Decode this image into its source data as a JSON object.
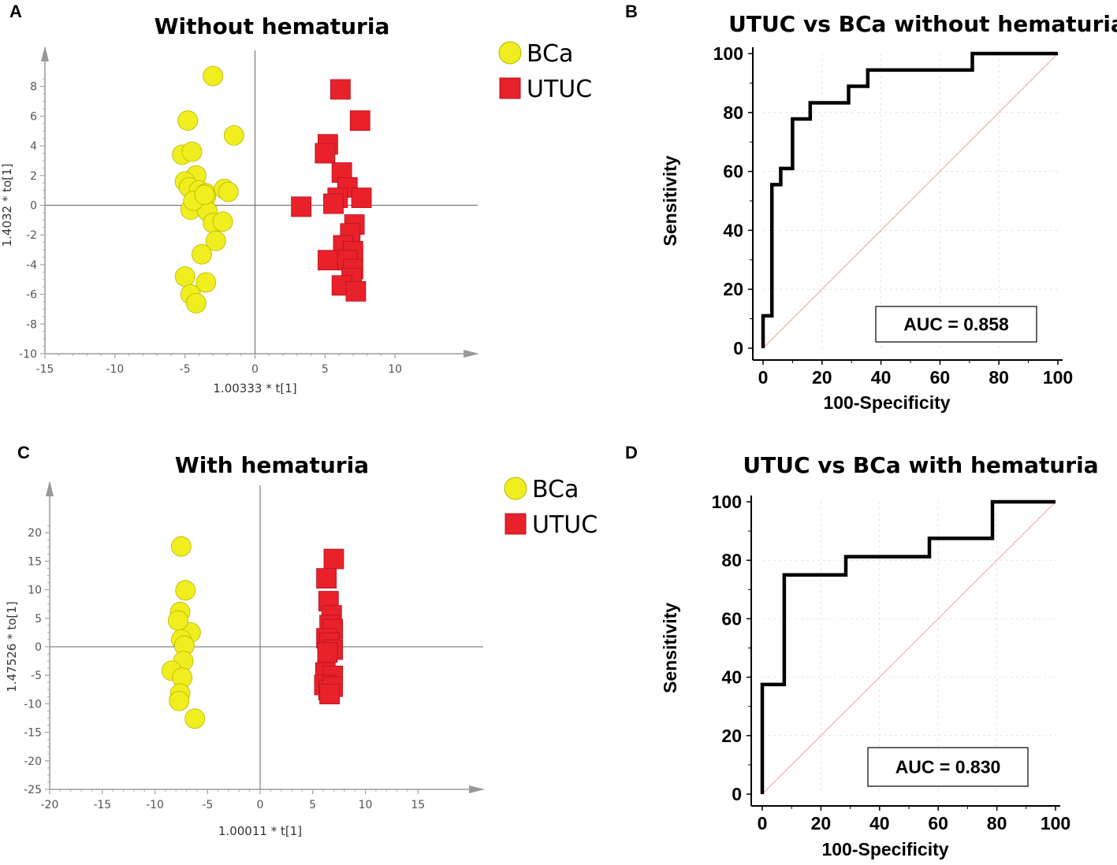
{
  "colors": {
    "bca": "#f0ee1e",
    "utuc": "#e8212b",
    "axis": "#888888",
    "roc": "#000000",
    "diag": "#f4a0a0",
    "grid": "#dddddd"
  },
  "panels": {
    "a": "A",
    "b": "B",
    "c": "C",
    "d": "D"
  },
  "chart_data": [
    {
      "type": "scatter",
      "title": "Without hematuria",
      "xlabel": "1.00333 * t[1]",
      "ylabel": "1.4032 * to[1]",
      "xlim": [
        -15,
        15
      ],
      "ylim": [
        -10,
        10
      ],
      "xticks": [
        -15,
        -10,
        -5,
        0,
        5,
        10
      ],
      "yticks": [
        -10,
        -8,
        -6,
        -4,
        -2,
        0,
        2,
        4,
        6,
        8
      ],
      "legend": [
        "BCa",
        "UTUC"
      ],
      "series": [
        {
          "name": "BCa",
          "points": [
            [
              -3.0,
              8.7
            ],
            [
              -4.8,
              5.7
            ],
            [
              -1.5,
              4.7
            ],
            [
              -5.2,
              3.4
            ],
            [
              -4.5,
              3.6
            ],
            [
              -4.2,
              2.0
            ],
            [
              -5.0,
              1.6
            ],
            [
              -4.7,
              1.2
            ],
            [
              -4.0,
              1.0
            ],
            [
              -3.5,
              0.8
            ],
            [
              -2.2,
              1.1
            ],
            [
              -1.9,
              0.9
            ],
            [
              -3.5,
              0.6
            ],
            [
              -4.2,
              0.0
            ],
            [
              -4.6,
              -0.3
            ],
            [
              -3.4,
              -0.4
            ],
            [
              -3.0,
              -1.2
            ],
            [
              -2.3,
              -1.1
            ],
            [
              -2.8,
              -2.4
            ],
            [
              -3.8,
              -3.3
            ],
            [
              -5.0,
              -4.8
            ],
            [
              -3.5,
              -5.2
            ],
            [
              -4.6,
              -6.0
            ],
            [
              -4.2,
              -6.6
            ],
            [
              -4.4,
              0.3
            ],
            [
              -3.6,
              0.7
            ]
          ]
        },
        {
          "name": "UTUC",
          "points": [
            [
              6.1,
              7.8
            ],
            [
              7.5,
              5.7
            ],
            [
              5.2,
              4.1
            ],
            [
              5.0,
              3.5
            ],
            [
              6.2,
              2.2
            ],
            [
              6.6,
              1.2
            ],
            [
              5.9,
              0.5
            ],
            [
              7.6,
              0.5
            ],
            [
              5.6,
              0.1
            ],
            [
              3.3,
              -0.1
            ],
            [
              7.1,
              -1.3
            ],
            [
              6.8,
              -1.9
            ],
            [
              6.3,
              -2.7
            ],
            [
              7.0,
              -3.1
            ],
            [
              5.2,
              -3.7
            ],
            [
              6.6,
              -3.7
            ],
            [
              7.0,
              -4.3
            ],
            [
              6.9,
              -4.9
            ],
            [
              6.2,
              -5.4
            ],
            [
              7.2,
              -5.8
            ]
          ]
        }
      ]
    },
    {
      "type": "line",
      "title": "UTUC vs BCa without hematuria",
      "xlabel": "100-Specificity",
      "ylabel": "Sensitivity",
      "xlim": [
        0,
        100
      ],
      "ylim": [
        0,
        100
      ],
      "xticks": [
        0,
        20,
        40,
        60,
        80,
        100
      ],
      "yticks": [
        0,
        20,
        40,
        60,
        80,
        100
      ],
      "auc_label": "AUC = 0.858",
      "roc": [
        [
          0,
          0
        ],
        [
          0,
          11
        ],
        [
          3,
          11
        ],
        [
          3,
          55.5
        ],
        [
          6,
          55.5
        ],
        [
          6,
          61
        ],
        [
          10,
          61
        ],
        [
          10,
          77.8
        ],
        [
          16,
          77.8
        ],
        [
          16,
          83.3
        ],
        [
          29,
          83.3
        ],
        [
          29,
          88.9
        ],
        [
          35.5,
          88.9
        ],
        [
          35.5,
          94.4
        ],
        [
          71,
          94.4
        ],
        [
          71,
          100
        ],
        [
          100,
          100
        ]
      ]
    },
    {
      "type": "scatter",
      "title": "With hematuria",
      "xlabel": "1.00011 * t[1]",
      "ylabel": "1.47526 * to[1]",
      "xlim": [
        -20,
        20
      ],
      "ylim": [
        -25,
        25
      ],
      "xticks": [
        -20,
        -15,
        -10,
        -5,
        0,
        5,
        10,
        15
      ],
      "yticks": [
        -25,
        -20,
        -15,
        -10,
        -5,
        0,
        5,
        10,
        15,
        20
      ],
      "legend": [
        "BCa",
        "UTUC"
      ],
      "series": [
        {
          "name": "BCa",
          "points": [
            [
              -7.5,
              17.6
            ],
            [
              -7.1,
              9.9
            ],
            [
              -7.6,
              6.1
            ],
            [
              -6.6,
              2.5
            ],
            [
              -7.8,
              4.6
            ],
            [
              -7.5,
              1.3
            ],
            [
              -7.2,
              0.2
            ],
            [
              -7.3,
              -2.5
            ],
            [
              -8.4,
              -4.2
            ],
            [
              -7.4,
              -5.4
            ],
            [
              -7.6,
              -8.2
            ],
            [
              -7.7,
              -9.5
            ],
            [
              -6.2,
              -12.6
            ]
          ]
        },
        {
          "name": "UTUC",
          "points": [
            [
              7.0,
              15.4
            ],
            [
              6.3,
              12.0
            ],
            [
              6.5,
              8.0
            ],
            [
              6.8,
              5.5
            ],
            [
              6.6,
              3.8
            ],
            [
              6.9,
              3.1
            ],
            [
              6.3,
              1.5
            ],
            [
              6.6,
              0.7
            ],
            [
              6.9,
              -0.5
            ],
            [
              6.4,
              -1.0
            ],
            [
              6.2,
              -4.5
            ],
            [
              6.9,
              -5.1
            ],
            [
              6.1,
              -6.7
            ],
            [
              6.5,
              -7.6
            ],
            [
              6.9,
              -7.0
            ],
            [
              6.6,
              -8.3
            ]
          ]
        }
      ]
    },
    {
      "type": "line",
      "title": "UTUC vs BCa with hematuria",
      "xlabel": "100-Specificity",
      "ylabel": "Sensitivity",
      "xlim": [
        0,
        100
      ],
      "ylim": [
        0,
        100
      ],
      "xticks": [
        0,
        20,
        40,
        60,
        80,
        100
      ],
      "yticks": [
        0,
        20,
        40,
        60,
        80,
        100
      ],
      "auc_label": "AUC = 0.830",
      "roc": [
        [
          0,
          0
        ],
        [
          0,
          37.5
        ],
        [
          7.5,
          37.5
        ],
        [
          7.5,
          75
        ],
        [
          28.5,
          75
        ],
        [
          28.5,
          81.25
        ],
        [
          57,
          81.25
        ],
        [
          57,
          87.5
        ],
        [
          78.5,
          87.5
        ],
        [
          78.5,
          100
        ],
        [
          100,
          100
        ]
      ]
    }
  ]
}
